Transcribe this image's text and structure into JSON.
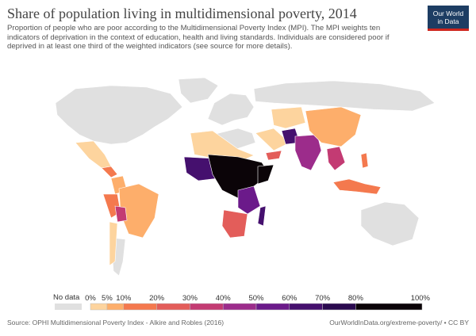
{
  "header": {
    "title": "Share of population living in multidimensional poverty, 2014",
    "subtitle": "Proportion of people who are poor according to the Multidimensional Poverty Index (MPI). The MPI weights ten indicators of deprivation in the context of education, health and living standards. Individuals are considered poor if deprived in at least one third of the weighted indicators (see source for more details)."
  },
  "logo": {
    "line1": "Our World",
    "line2": "in Data"
  },
  "legend": {
    "no_data_label": "No data",
    "tick_labels": [
      "0%",
      "5%",
      "10%",
      "20%",
      "30%",
      "40%",
      "50%",
      "60%",
      "70%",
      "80%",
      "100%"
    ],
    "tick_values": [
      0,
      5,
      10,
      20,
      30,
      40,
      50,
      60,
      70,
      80,
      100
    ],
    "colors": [
      "#fdd49e",
      "#fdae6b",
      "#f4794e",
      "#e35d5a",
      "#c33b73",
      "#9c2c8b",
      "#6b1a8a",
      "#45106e",
      "#2a0a4f",
      "#0b0408"
    ],
    "no_data_color": "#e0e0e0"
  },
  "footer": {
    "source": "Source: OPHI Multidimensional Poverty Index - Alkire and Robles (2016)",
    "credit": "OurWorldInData.org/extreme-poverty/ • CC BY"
  }
}
